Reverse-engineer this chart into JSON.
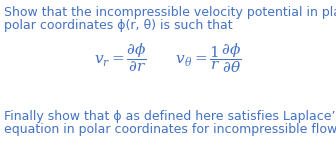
{
  "background_color": "#ffffff",
  "text_color": "#4472c4",
  "line1": "Show that the incompressible velocity potential in plane",
  "line2": "polar coordinates ϕ(r, θ) is such that",
  "equation": "$v_r = \\dfrac{\\partial\\phi}{\\partial r} \\quad\\quad v_\\theta = \\dfrac{1}{r}\\dfrac{\\partial\\phi}{\\partial\\theta}$",
  "line3": "Finally show that ϕ as defined here satisfies Laplace’s",
  "line4": "equation in polar coordinates for incompressible flow.",
  "fontsize_text": 9.0,
  "fontsize_eq": 11.0,
  "fig_width": 3.36,
  "fig_height": 1.51,
  "dpi": 100
}
